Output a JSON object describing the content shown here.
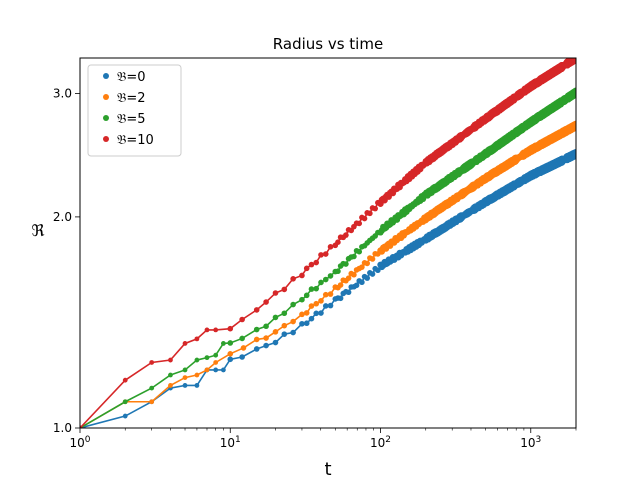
{
  "chart_data": {
    "type": "line",
    "title": "Radius vs time",
    "xlabel": "t",
    "ylabel": "ℜ",
    "xscale": "log",
    "yscale": "log",
    "xlim": [
      1,
      2000
    ],
    "ylim": [
      1.0,
      3.37
    ],
    "x_ticks": [
      {
        "value": 1,
        "base": "10",
        "exp": "0"
      },
      {
        "value": 10,
        "base": "10",
        "exp": "1"
      },
      {
        "value": 100,
        "base": "10",
        "exp": "2"
      },
      {
        "value": 1000,
        "base": "10",
        "exp": "3"
      }
    ],
    "y_ticks": [
      {
        "value": 1.0,
        "label": "1.0"
      },
      {
        "value": 2.0,
        "label": "2.0"
      },
      {
        "value": 3.0,
        "label": "3.0"
      }
    ],
    "grid": false,
    "legend_position": "top-left",
    "markers": "dots",
    "series": [
      {
        "name": "𝔅=0",
        "color": "#1f77b4",
        "points": [
          [
            1,
            1.0
          ],
          [
            2,
            1.04
          ],
          [
            3,
            1.09
          ],
          [
            4,
            1.14
          ],
          [
            5,
            1.15
          ],
          [
            6,
            1.15
          ],
          [
            7,
            1.21
          ],
          [
            8,
            1.21
          ],
          [
            9,
            1.21
          ],
          [
            10,
            1.25
          ],
          [
            12,
            1.27
          ],
          [
            15,
            1.29
          ],
          [
            20,
            1.33
          ],
          [
            30,
            1.4
          ],
          [
            50,
            1.52
          ],
          [
            100,
            1.7
          ],
          [
            200,
            1.86
          ],
          [
            500,
            2.1
          ],
          [
            1000,
            2.29
          ],
          [
            2000,
            2.46
          ]
        ]
      },
      {
        "name": "𝔅=2",
        "color": "#ff7f0e",
        "points": [
          [
            1,
            1.0
          ],
          [
            2,
            1.09
          ],
          [
            3,
            1.09
          ],
          [
            4,
            1.15
          ],
          [
            5,
            1.18
          ],
          [
            6,
            1.19
          ],
          [
            7,
            1.21
          ],
          [
            8,
            1.24
          ],
          [
            10,
            1.28
          ],
          [
            15,
            1.33
          ],
          [
            20,
            1.37
          ],
          [
            30,
            1.45
          ],
          [
            50,
            1.58
          ],
          [
            100,
            1.79
          ],
          [
            200,
            1.99
          ],
          [
            500,
            2.27
          ],
          [
            1000,
            2.49
          ],
          [
            2000,
            2.7
          ]
        ]
      },
      {
        "name": "𝔅=5",
        "color": "#2ca02c",
        "points": [
          [
            1,
            1.0
          ],
          [
            2,
            1.09
          ],
          [
            3,
            1.14
          ],
          [
            4,
            1.19
          ],
          [
            5,
            1.21
          ],
          [
            6,
            1.25
          ],
          [
            7,
            1.26
          ],
          [
            8,
            1.27
          ],
          [
            9,
            1.32
          ],
          [
            10,
            1.33
          ],
          [
            12,
            1.34
          ],
          [
            15,
            1.38
          ],
          [
            20,
            1.43
          ],
          [
            30,
            1.53
          ],
          [
            50,
            1.67
          ],
          [
            100,
            1.91
          ],
          [
            200,
            2.15
          ],
          [
            500,
            2.46
          ],
          [
            1000,
            2.73
          ],
          [
            2000,
            3.01
          ]
        ]
      },
      {
        "name": "𝔅=10",
        "color": "#d62728",
        "points": [
          [
            1,
            1.0
          ],
          [
            2,
            1.17
          ],
          [
            3,
            1.24
          ],
          [
            4,
            1.25
          ],
          [
            5,
            1.32
          ],
          [
            6,
            1.34
          ],
          [
            7,
            1.38
          ],
          [
            8,
            1.38
          ],
          [
            10,
            1.39
          ],
          [
            12,
            1.42
          ],
          [
            15,
            1.48
          ],
          [
            20,
            1.55
          ],
          [
            30,
            1.66
          ],
          [
            50,
            1.83
          ],
          [
            100,
            2.1
          ],
          [
            200,
            2.39
          ],
          [
            500,
            2.76
          ],
          [
            1000,
            3.07
          ],
          [
            2000,
            3.37
          ]
        ]
      }
    ]
  }
}
